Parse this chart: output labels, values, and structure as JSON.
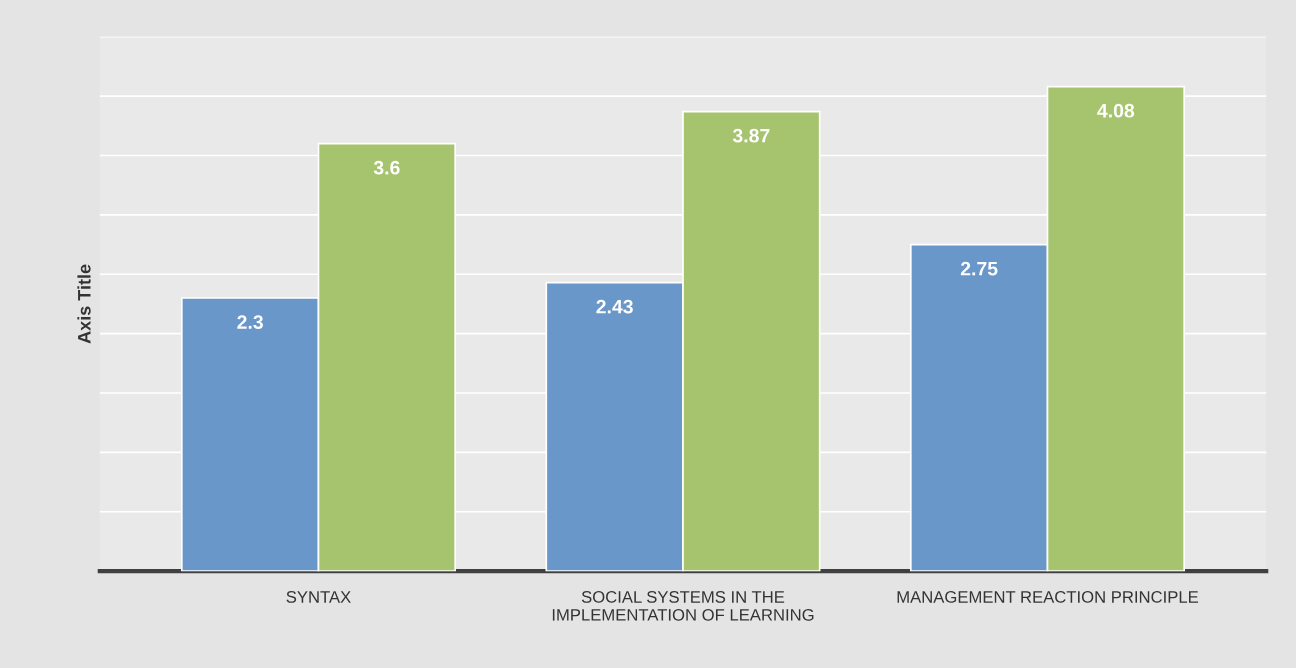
{
  "chart_data": {
    "type": "bar",
    "ylabel": "Axis Title",
    "categories": [
      "SYNTAX",
      "SOCIAL SYSTEMS IN THE\nIMPLEMENTATION OF LEARNING",
      "MANAGEMENT REACTION PRINCIPLE"
    ],
    "series": [
      {
        "color": "#6a97c9",
        "values": [
          2.3,
          2.43,
          2.75
        ]
      },
      {
        "color": "#a6c46e",
        "values": [
          3.6,
          3.87,
          4.08
        ]
      }
    ],
    "ylim": [
      0,
      4.5
    ],
    "yticks": [
      {
        "value": 0,
        "label": null
      },
      {
        "value": 0.5,
        "label": null
      },
      {
        "value": 1,
        "label": null
      },
      {
        "value": 1.5,
        "label": null
      },
      {
        "value": 2,
        "label": null
      },
      {
        "value": 2.5,
        "label": null
      },
      {
        "value": 3,
        "label": null
      },
      {
        "value": 3.5,
        "label": null
      },
      {
        "value": 4,
        "label": null
      },
      {
        "value": 4.5,
        "label": null
      }
    ],
    "tick_labels": "x",
    "grid": "y",
    "data_labels": true,
    "legend": false
  }
}
